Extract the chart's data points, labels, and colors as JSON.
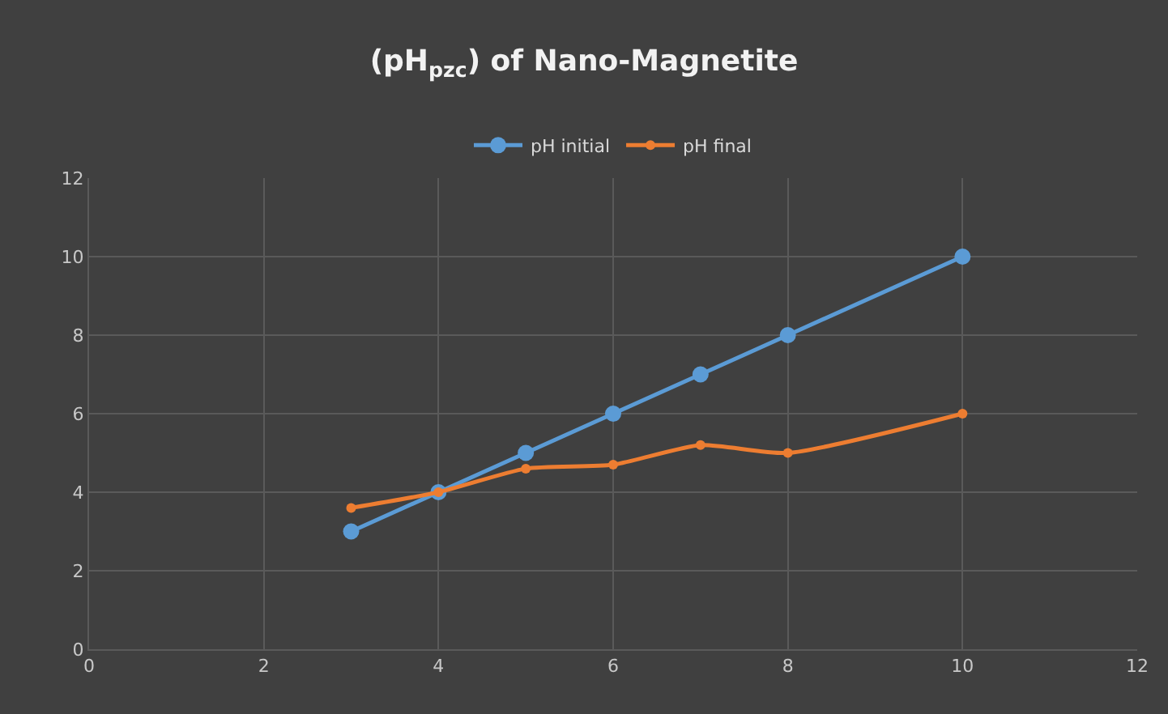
{
  "chart_data": {
    "type": "line",
    "title": "(pH$_{pzc}$) of Nano-Magnetite",
    "x": [
      3,
      4,
      5,
      6,
      7,
      8,
      10
    ],
    "series": [
      {
        "name": "pH initial",
        "color": "#5b9bd5",
        "values": [
          3,
          4,
          5,
          6,
          7,
          8,
          10
        ]
      },
      {
        "name": "pH final",
        "color": "#ed7d31",
        "values": [
          3.6,
          4.0,
          4.6,
          4.7,
          5.2,
          5.0,
          6.0
        ]
      }
    ],
    "xlim": [
      0,
      12
    ],
    "xticks": [
      0,
      2,
      4,
      6,
      8,
      10,
      12
    ],
    "ylim": [
      0,
      12
    ],
    "yticks": [
      0,
      2,
      4,
      6,
      8,
      10,
      12
    ],
    "grid": true,
    "legend": "top",
    "marker": "circle",
    "line_style": "solid"
  }
}
